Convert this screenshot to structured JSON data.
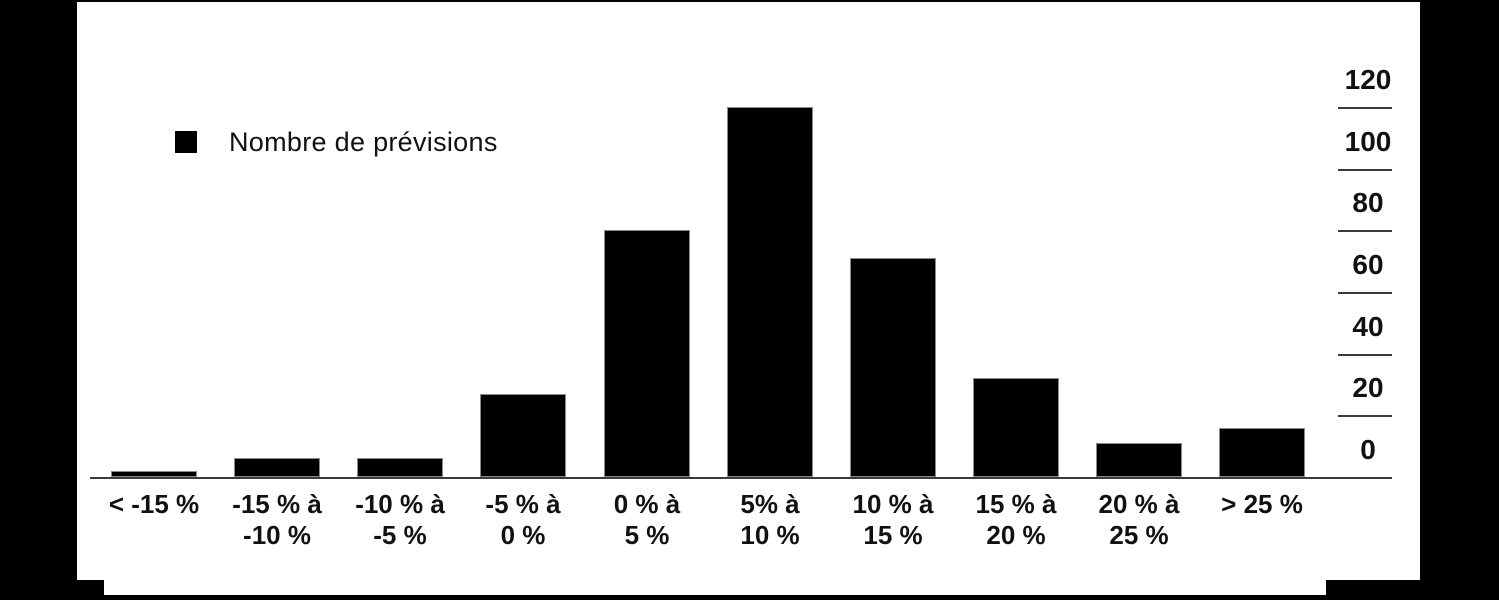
{
  "figure": {
    "frame_color": "#000000",
    "panel_color": "#ffffff"
  },
  "legend": {
    "label": "Nombre de prévisions",
    "swatch_color": "#000000",
    "position": "top-left"
  },
  "chart_data": {
    "type": "bar",
    "title": "",
    "xlabel": "",
    "ylabel": "",
    "series": [
      {
        "name": "Nombre de prévisions",
        "values": [
          2,
          6,
          6,
          27,
          80,
          120,
          71,
          32,
          11,
          16
        ]
      }
    ],
    "categories": [
      [
        "< -15 %"
      ],
      [
        "-15 % à",
        "-10 %"
      ],
      [
        "-10 % à",
        "-5 %"
      ],
      [
        "-5 % à",
        "0 %"
      ],
      [
        "0 % à",
        "5 %"
      ],
      [
        "5% à",
        "10 %"
      ],
      [
        "10 % à",
        "15 %"
      ],
      [
        "15 % à",
        "20 %"
      ],
      [
        "20 % à",
        "25 %"
      ],
      [
        "> 25 %"
      ]
    ],
    "yticks": [
      0,
      20,
      40,
      60,
      80,
      100,
      120
    ],
    "ylim": [
      0,
      120
    ],
    "yaxis_position": "right",
    "ytick_labels_above_ticks": true,
    "grid": false,
    "bar_color": "#000000",
    "axis_color": "#3a3a3a",
    "legend_position": "top-left"
  }
}
